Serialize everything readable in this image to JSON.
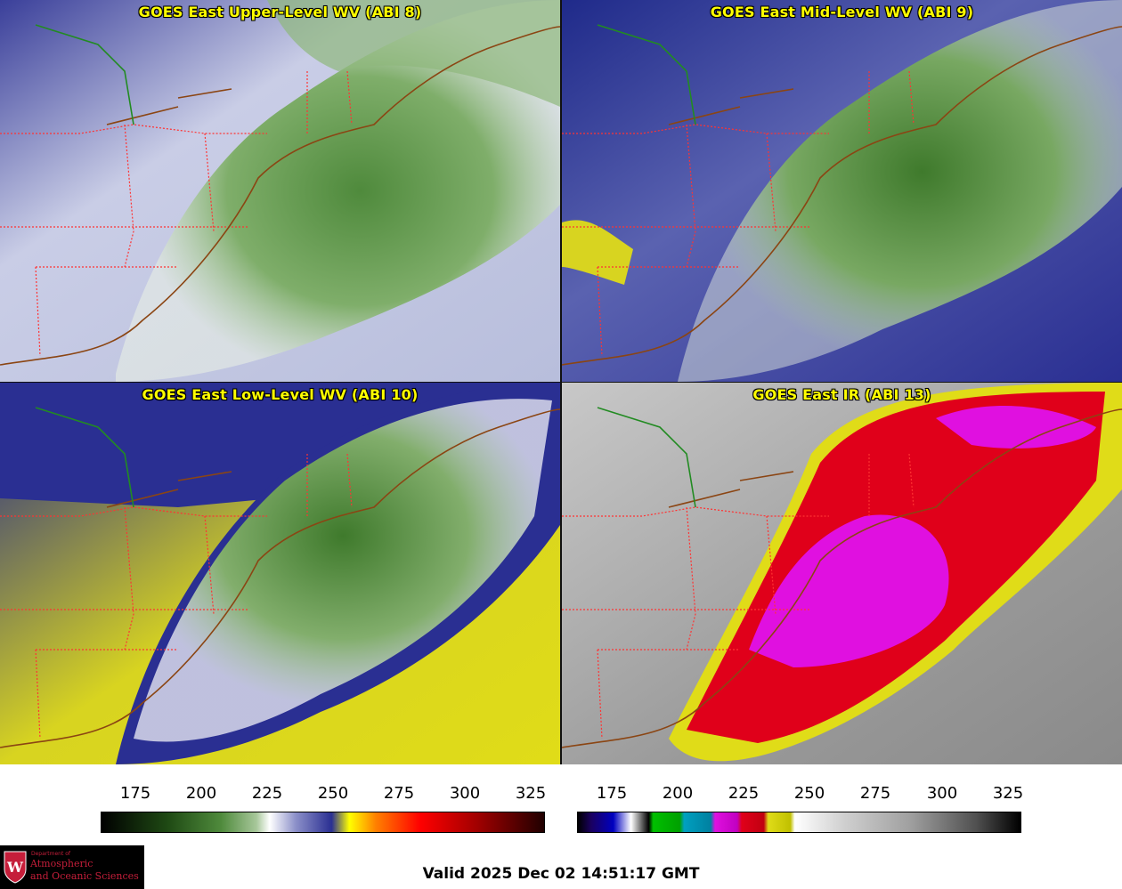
{
  "panels": [
    {
      "id": "p1",
      "title": "GOES East Upper-Level WV (ABI 8)",
      "colormap": "wv"
    },
    {
      "id": "p2",
      "title": "GOES East Mid-Level WV (ABI 9)",
      "colormap": "wv"
    },
    {
      "id": "p3",
      "title": "GOES East Low-Level WV (ABI 10)",
      "colormap": "wv"
    },
    {
      "id": "p4",
      "title": "GOES East IR (ABI 13)",
      "colormap": "ir"
    }
  ],
  "colorbar_wv": {
    "ticks": [
      "175",
      "200",
      "225",
      "250",
      "275",
      "300",
      "325"
    ],
    "colors": [
      "#000000",
      "#2a5a1a",
      "#6f9f5a",
      "#ffffff",
      "#3b3b9a",
      "#1a1a80",
      "#ffff00",
      "#ff8000",
      "#ff0000",
      "#a00000",
      "#000000"
    ]
  },
  "colorbar_ir": {
    "ticks": [
      "175",
      "200",
      "225",
      "250",
      "275",
      "300",
      "325"
    ]
  },
  "valid": "Valid 2025 Dec 02 14:51:17 GMT",
  "logo": {
    "dept": "Department of",
    "line1": "Atmospheric",
    "line2": "and Oceanic Sciences",
    "crest_letter": "W"
  },
  "colors": {
    "title": "#ffff00",
    "state_border": "#ff3333",
    "coast": "#8b4513",
    "country_border": "#228b22"
  }
}
